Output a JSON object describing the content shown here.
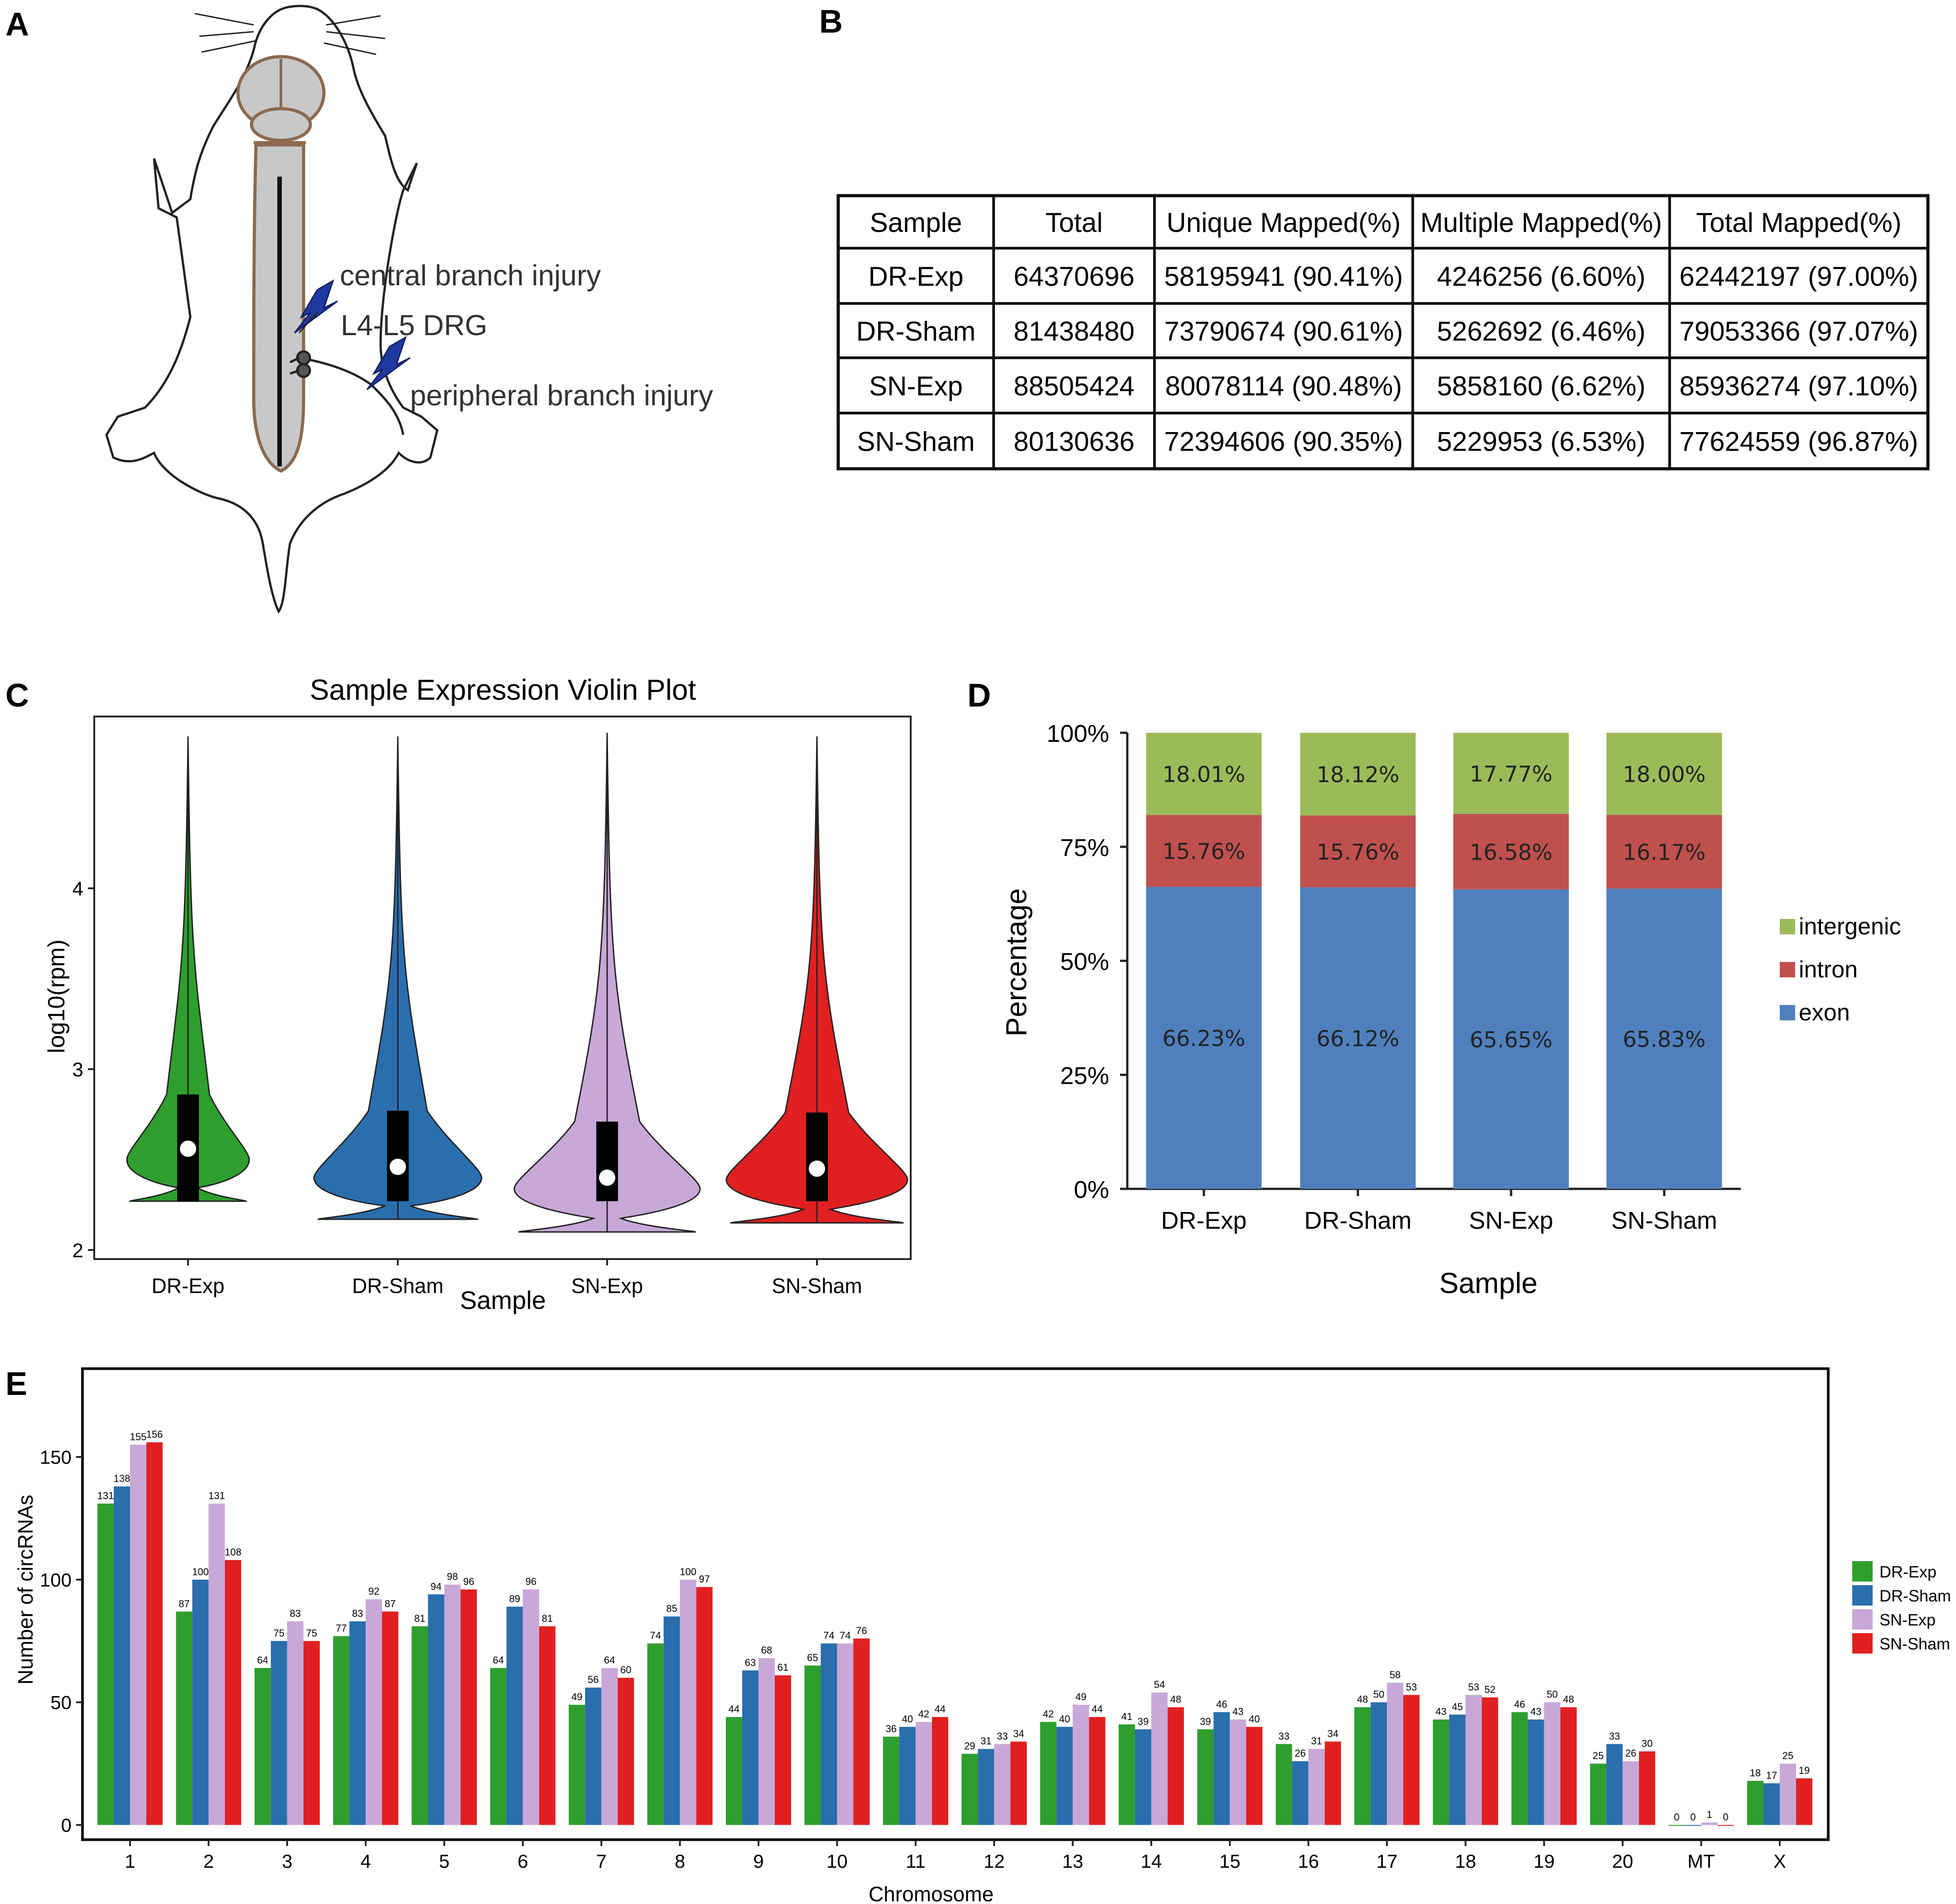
{
  "panel_labels": [
    "A",
    "B",
    "C",
    "D",
    "E"
  ],
  "panel_a": {
    "annotations": [
      "central branch injury",
      "L4-L5 DRG",
      "peripheral branch injury"
    ]
  },
  "table": {
    "headers": [
      "Sample",
      "Total",
      "Unique Mapped(%)",
      "Multiple Mapped(%)",
      "Total Mapped(%)"
    ],
    "rows": [
      [
        "DR-Exp",
        "64370696",
        "58195941 (90.41%)",
        "4246256 (6.60%)",
        "62442197 (97.00%)"
      ],
      [
        "DR-Sham",
        "81438480",
        "73790674 (90.61%)",
        "5262692 (6.46%)",
        "79053366 (97.07%)"
      ],
      [
        "SN-Exp",
        "88505424",
        "80078114 (90.48%)",
        "5858160 (6.62%)",
        "85936274 (97.10%)"
      ],
      [
        "SN-Sham",
        "80130636",
        "72394606 (90.35%)",
        "5229953 (6.53%)",
        "77624559 (96.87%)"
      ]
    ]
  },
  "chart_data": [
    {
      "type": "violin",
      "title": "Sample Expression Violin Plot",
      "xlabel": "Sample",
      "ylabel": "log10(rpm)",
      "categories": [
        "DR-Exp",
        "DR-Sham",
        "SN-Exp",
        "SN-Sham"
      ],
      "colors": [
        "#2e9e2e",
        "#2a6eae",
        "#c8a8d8",
        "#e02020"
      ],
      "yticks": [
        "2",
        "3",
        "4"
      ],
      "ylim": [
        1.95,
        4.95
      ],
      "median": [
        2.56,
        2.46,
        2.4,
        2.45
      ],
      "q1": [
        2.27,
        2.27,
        2.27,
        2.27
      ],
      "q3": [
        2.86,
        2.77,
        2.71,
        2.76
      ],
      "min": [
        2.27,
        2.17,
        2.1,
        2.15
      ],
      "max": [
        4.84,
        4.84,
        4.86,
        4.84
      ]
    },
    {
      "type": "stacked-bar",
      "xlabel": "Sample",
      "ylabel": "Percentage",
      "categories": [
        "DR-Exp",
        "DR-Sham",
        "SN-Exp",
        "SN-Sham"
      ],
      "yticks": [
        "0%",
        "25%",
        "50%",
        "75%",
        "100%"
      ],
      "series": [
        {
          "name": "exon",
          "color": "#4f80bd",
          "values": [
            66.23,
            66.12,
            65.65,
            65.83
          ],
          "labels": [
            "66.23%",
            "66.12%",
            "65.65%",
            "65.83%"
          ]
        },
        {
          "name": "intron",
          "color": "#c0504d",
          "values": [
            15.76,
            15.76,
            16.58,
            16.17
          ],
          "labels": [
            "15.76%",
            "15.76%",
            "16.58%",
            "16.17%"
          ]
        },
        {
          "name": "intergenic",
          "color": "#9bbb59",
          "values": [
            18.01,
            18.12,
            17.77,
            18.0
          ],
          "labels": [
            "18.01%",
            "18.12%",
            "17.77%",
            "18.00%"
          ]
        }
      ],
      "legend": [
        "intergenic",
        "intron",
        "exon"
      ]
    },
    {
      "type": "bar",
      "xlabel": "Chromosome",
      "ylabel": "Number of circRNAs",
      "categories": [
        "1",
        "2",
        "3",
        "4",
        "5",
        "6",
        "7",
        "8",
        "9",
        "10",
        "11",
        "12",
        "13",
        "14",
        "15",
        "16",
        "17",
        "18",
        "19",
        "20",
        "MT",
        "X"
      ],
      "yticks": [
        "0",
        "50",
        "100",
        "150"
      ],
      "ylim": [
        -6,
        186
      ],
      "series": [
        {
          "name": "DR-Exp",
          "color": "#2e9e2e",
          "values": [
            131,
            87,
            64,
            77,
            81,
            64,
            49,
            74,
            44,
            65,
            36,
            29,
            42,
            41,
            39,
            33,
            48,
            43,
            46,
            25,
            0,
            18
          ]
        },
        {
          "name": "DR-Sham",
          "color": "#2a6eae",
          "values": [
            138,
            100,
            75,
            83,
            94,
            89,
            56,
            85,
            63,
            74,
            40,
            31,
            40,
            39,
            46,
            26,
            50,
            45,
            43,
            33,
            0,
            17
          ]
        },
        {
          "name": "SN-Exp",
          "color": "#c8a8d8",
          "values": [
            155,
            131,
            83,
            92,
            98,
            96,
            64,
            100,
            68,
            74,
            42,
            33,
            49,
            54,
            43,
            31,
            58,
            53,
            50,
            26,
            1,
            25
          ]
        },
        {
          "name": "SN-Sham",
          "color": "#e02020",
          "values": [
            156,
            108,
            75,
            87,
            96,
            81,
            60,
            97,
            61,
            76,
            44,
            34,
            44,
            48,
            40,
            34,
            53,
            52,
            48,
            30,
            0,
            19
          ]
        }
      ]
    }
  ]
}
